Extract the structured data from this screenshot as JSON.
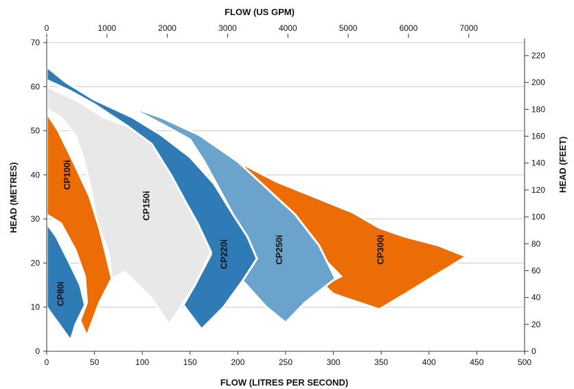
{
  "chart_data": {
    "type": "area",
    "title": "",
    "xlabel": "FLOW (LITRES PER SECOND)",
    "ylabel": "HEAD  (METRES)",
    "x2label": "FLOW (US GPM)",
    "y2label": "HEAD  (FEET)",
    "xlim": [
      0,
      500
    ],
    "ylim": [
      0,
      70
    ],
    "x2lim": [
      0,
      7925
    ],
    "y2lim": [
      0,
      229.7
    ],
    "xticks": [
      "0",
      "50",
      "100",
      "150",
      "200",
      "250",
      "300",
      "350",
      "400",
      "450",
      "500"
    ],
    "yticks": [
      "0",
      "10",
      "20",
      "30",
      "40",
      "50",
      "60",
      "70"
    ],
    "x2ticks": [
      "0",
      "1000",
      "2000",
      "3000",
      "4000",
      "5000",
      "6000",
      "7000"
    ],
    "y2ticks": [
      "0",
      "20",
      "40",
      "60",
      "80",
      "100",
      "120",
      "140",
      "160",
      "180",
      "200",
      "220"
    ],
    "grid": "horizontal",
    "colors": {
      "orange": "#ec6d06",
      "dark_blue": "#2f7bb6",
      "light_blue": "#6aa3cc",
      "light_grey": "#e8e8e8",
      "grid": "#c8c8c8"
    },
    "series": [
      {
        "name": "CP300i",
        "color": "#ec6d06",
        "points": [
          [
            175,
            46
          ],
          [
            200,
            43
          ],
          [
            240,
            38.5
          ],
          [
            280,
            35
          ],
          [
            320,
            31.5
          ],
          [
            348,
            28
          ],
          [
            375,
            26
          ],
          [
            410,
            24
          ],
          [
            439,
            21.5
          ],
          [
            405,
            17
          ],
          [
            375,
            13
          ],
          [
            348,
            9.5
          ],
          [
            300,
            13
          ],
          [
            290,
            15
          ],
          [
            308,
            17
          ],
          [
            290,
            21
          ],
          [
            270,
            26
          ],
          [
            240,
            33
          ],
          [
            210,
            40
          ],
          [
            175,
            46
          ]
        ]
      },
      {
        "name": "CP250i",
        "color": "#6aa3cc",
        "points": [
          [
            45,
            59
          ],
          [
            80,
            56
          ],
          [
            120,
            53
          ],
          [
            160,
            49
          ],
          [
            200,
            43
          ],
          [
            230,
            37
          ],
          [
            260,
            31
          ],
          [
            285,
            24
          ],
          [
            302,
            16.5
          ],
          [
            270,
            11
          ],
          [
            250,
            6.5
          ],
          [
            230,
            10
          ],
          [
            205,
            16
          ],
          [
            220,
            21
          ],
          [
            200,
            29
          ],
          [
            180,
            37
          ],
          [
            165,
            43
          ],
          [
            150,
            48
          ],
          [
            125,
            51
          ],
          [
            90,
            55
          ],
          [
            45,
            59
          ]
        ]
      },
      {
        "name": "CP220i",
        "color": "#2f7bb6",
        "points": [
          [
            0,
            64.5
          ],
          [
            20,
            61
          ],
          [
            50,
            57
          ],
          [
            90,
            53
          ],
          [
            120,
            49
          ],
          [
            150,
            44
          ],
          [
            175,
            38
          ],
          [
            195,
            31
          ],
          [
            210,
            26
          ],
          [
            220,
            21
          ],
          [
            205,
            16
          ],
          [
            185,
            10
          ],
          [
            162,
            5
          ],
          [
            143,
            10.5
          ],
          [
            155,
            15
          ],
          [
            172,
            22
          ],
          [
            160,
            28
          ],
          [
            145,
            34
          ],
          [
            130,
            40
          ],
          [
            110,
            46
          ],
          [
            85,
            51
          ],
          [
            50,
            56
          ],
          [
            25,
            59
          ],
          [
            0,
            61.5
          ],
          [
            0,
            64.5
          ]
        ]
      },
      {
        "name": "CP150i",
        "color": "#e8e8e8",
        "points": [
          [
            0,
            60
          ],
          [
            30,
            57
          ],
          [
            60,
            53
          ],
          [
            85,
            51
          ],
          [
            110,
            47
          ],
          [
            130,
            40
          ],
          [
            145,
            34
          ],
          [
            158,
            29
          ],
          [
            172,
            22.5
          ],
          [
            155,
            15
          ],
          [
            140,
            10
          ],
          [
            128,
            6
          ],
          [
            110,
            12
          ],
          [
            82,
            18
          ],
          [
            68,
            16.5
          ],
          [
            65,
            22
          ],
          [
            52,
            30
          ],
          [
            45,
            38
          ],
          [
            38,
            44
          ],
          [
            30,
            49
          ],
          [
            15,
            53
          ],
          [
            0,
            55
          ],
          [
            0,
            60
          ]
        ]
      },
      {
        "name": "CP100i",
        "color": "#ec6d06",
        "points": [
          [
            0,
            54
          ],
          [
            12,
            50
          ],
          [
            30,
            42
          ],
          [
            45,
            35
          ],
          [
            55,
            28
          ],
          [
            62,
            22
          ],
          [
            68,
            16.5
          ],
          [
            55,
            11
          ],
          [
            42,
            3.5
          ],
          [
            35,
            7
          ],
          [
            42,
            11
          ],
          [
            40,
            17
          ],
          [
            30,
            23
          ],
          [
            15,
            29
          ],
          [
            0,
            31
          ],
          [
            0,
            54
          ]
        ]
      },
      {
        "name": "CP80i",
        "color": "#2f7bb6",
        "points": [
          [
            0,
            29
          ],
          [
            10,
            26
          ],
          [
            25,
            19.5
          ],
          [
            35,
            15
          ],
          [
            40,
            10.5
          ],
          [
            30,
            6
          ],
          [
            25,
            2.5
          ],
          [
            15,
            5.5
          ],
          [
            0,
            10
          ],
          [
            0,
            29
          ]
        ]
      }
    ],
    "region_labels": [
      {
        "text": "CP80i",
        "x": 15,
        "y": 13
      },
      {
        "text": "CP100i",
        "x": 22,
        "y": 40
      },
      {
        "text": "CP150i",
        "x": 105,
        "y": 33
      },
      {
        "text": "CP220i",
        "x": 186,
        "y": 22
      },
      {
        "text": "CP250i",
        "x": 244,
        "y": 23
      },
      {
        "text": "CP300i",
        "x": 350,
        "y": 23
      }
    ]
  }
}
